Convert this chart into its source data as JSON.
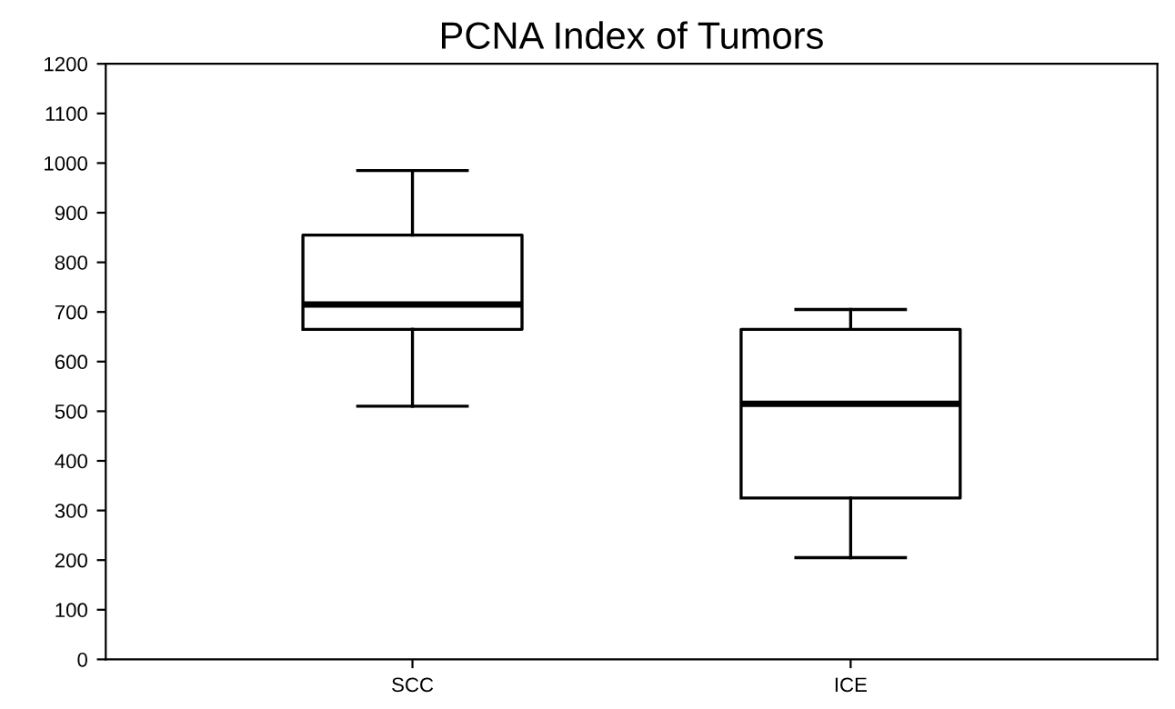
{
  "chart_data": {
    "type": "box",
    "title": "PCNA Index of Tumors",
    "categories": [
      "SCC",
      "ICE"
    ],
    "boxes": [
      {
        "low": 510,
        "q1": 665,
        "median": 715,
        "q3": 855,
        "high": 985
      },
      {
        "low": 205,
        "q1": 325,
        "median": 515,
        "q3": 665,
        "high": 705
      }
    ],
    "ylim": [
      0,
      1200
    ],
    "yticks": [
      0,
      100,
      200,
      300,
      400,
      500,
      600,
      700,
      800,
      900,
      1000,
      1100,
      1200
    ],
    "color": "#000000",
    "grid": false
  }
}
